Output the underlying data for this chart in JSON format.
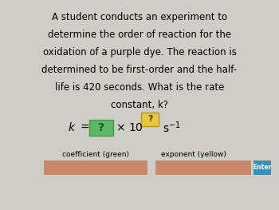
{
  "background_color": "#d0cdc6",
  "text_lines": [
    "A student conducts an experiment to",
    "determine the order of reaction for the",
    "oxidation of a purple dye. The reaction is",
    "determined to be first-order and the half-",
    "life is 420 seconds. What is the rate",
    "constant, k?"
  ],
  "label_coeff": "coefficient (green)",
  "label_exp": "exponent (yellow)",
  "enter_text": "Enter",
  "box_green_color": "#5db865",
  "input_box_color": "#c9896a",
  "enter_box_color": "#3a8fb5",
  "text_fontsize": 8.5,
  "formula_fontsize": 10,
  "label_fontsize": 6.5
}
